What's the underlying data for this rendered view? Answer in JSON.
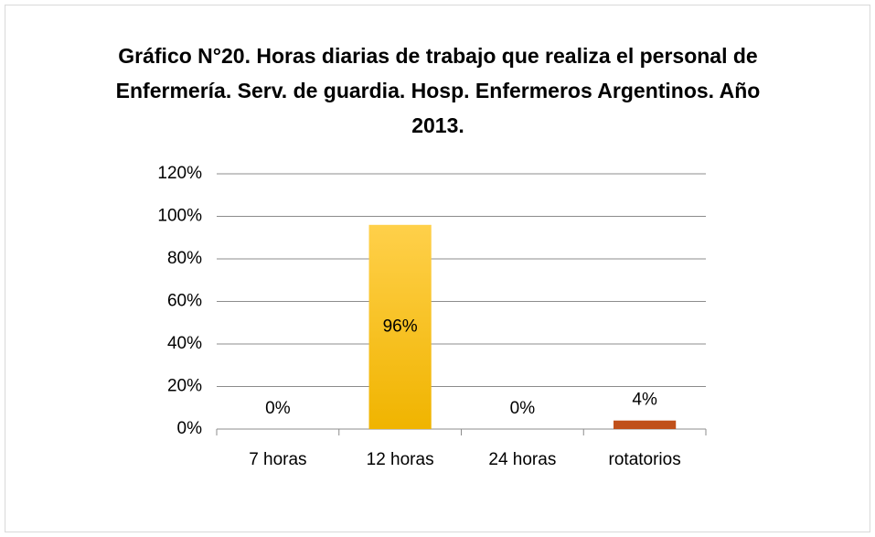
{
  "chart_data": {
    "type": "bar",
    "title": "Gráfico N°20. Horas diarias de trabajo que realiza el personal de Enfermería. Serv. de guardia. Hosp. Enfermeros Argentinos. Año 2013.",
    "categories": [
      "7 horas",
      "12 horas",
      "24 horas",
      "rotatorios"
    ],
    "values": [
      0,
      96,
      0,
      4
    ],
    "value_labels": [
      "0%",
      "96%",
      "0%",
      "4%"
    ],
    "colors": [
      "#f5b800",
      "#f5b800",
      "#f5b800",
      "#c0501a"
    ],
    "ylim": [
      0,
      120
    ],
    "yticks": [
      {
        "value": 0,
        "label": "0%"
      },
      {
        "value": 20,
        "label": "20%"
      },
      {
        "value": 40,
        "label": "40%"
      },
      {
        "value": 60,
        "label": "60%"
      },
      {
        "value": 80,
        "label": "80%"
      },
      {
        "value": 100,
        "label": "100%"
      },
      {
        "value": 120,
        "label": "120%"
      }
    ],
    "grid": true
  }
}
